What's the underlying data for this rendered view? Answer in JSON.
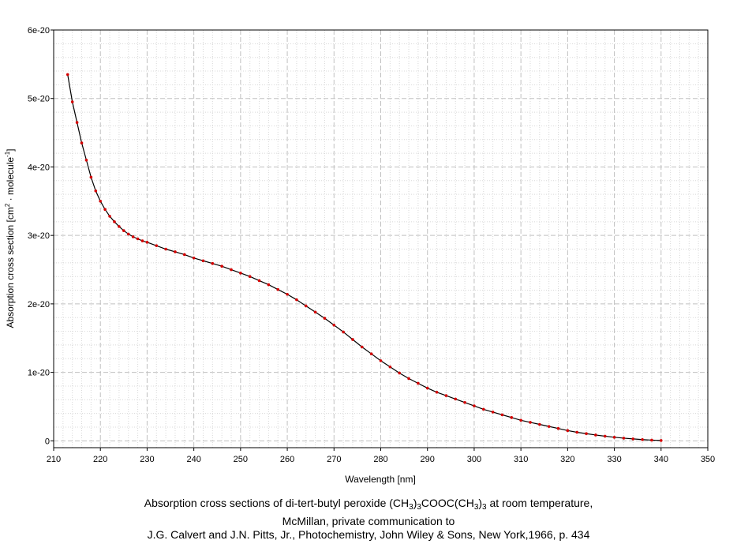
{
  "chart_data": {
    "type": "line",
    "xlabel": "Wavelength [nm]",
    "ylabel": "Absorption cross section [cm",
    "ylabel_sup1": "2",
    "ylabel_mid": " · molecule",
    "ylabel_sup2": "-1",
    "ylabel_end": "]",
    "xlim": [
      210,
      350
    ],
    "ylim": [
      -1e-21,
      6e-20
    ],
    "x_ticks": [
      210,
      220,
      230,
      240,
      250,
      260,
      270,
      280,
      290,
      300,
      310,
      320,
      330,
      340,
      350
    ],
    "x_tick_labels": [
      "210",
      "220",
      "230",
      "240",
      "250",
      "260",
      "270",
      "280",
      "290",
      "300",
      "310",
      "320",
      "330",
      "340",
      "350"
    ],
    "y_ticks": [
      0,
      1e-20,
      2e-20,
      3e-20,
      4e-20,
      5e-20,
      6e-20
    ],
    "y_tick_labels": [
      "0",
      "1e-20",
      "2e-20",
      "3e-20",
      "4e-20",
      "5e-20",
      "6e-20"
    ],
    "grid": true,
    "colors": {
      "line": "#000000",
      "marker": "#d40000",
      "grid": "#c0c0c0"
    },
    "series": [
      {
        "x": [
          213,
          214,
          215,
          216,
          217,
          218,
          219,
          220,
          221,
          222,
          223,
          224,
          225,
          226,
          227,
          228,
          229,
          230,
          232,
          234,
          236,
          238,
          240,
          242,
          244,
          246,
          248,
          250,
          252,
          254,
          256,
          258,
          260,
          262,
          264,
          266,
          268,
          270,
          272,
          274,
          276,
          278,
          280,
          282,
          284,
          286,
          288,
          290,
          292,
          294,
          296,
          298,
          300,
          302,
          304,
          306,
          308,
          310,
          312,
          314,
          316,
          318,
          320,
          322,
          324,
          326,
          328,
          330,
          332,
          334,
          336,
          338,
          340
        ],
        "y": [
          5.35e-20,
          4.95e-20,
          4.65e-20,
          4.35e-20,
          4.1e-20,
          3.85e-20,
          3.65e-20,
          3.5e-20,
          3.38e-20,
          3.28e-20,
          3.2e-20,
          3.13e-20,
          3.07e-20,
          3.02e-20,
          2.98e-20,
          2.95e-20,
          2.92e-20,
          2.9e-20,
          2.85e-20,
          2.8e-20,
          2.76e-20,
          2.72e-20,
          2.67e-20,
          2.63e-20,
          2.59e-20,
          2.55e-20,
          2.5e-20,
          2.45e-20,
          2.4e-20,
          2.34e-20,
          2.28e-20,
          2.21e-20,
          2.14e-20,
          2.06e-20,
          1.97e-20,
          1.88e-20,
          1.79e-20,
          1.69e-20,
          1.59e-20,
          1.48e-20,
          1.37e-20,
          1.27e-20,
          1.17e-20,
          1.08e-20,
          9.9e-21,
          9.1e-21,
          8.4e-21,
          7.7e-21,
          7.1e-21,
          6.6e-21,
          6.1e-21,
          5.6e-21,
          5.1e-21,
          4.6e-21,
          4.2e-21,
          3.8e-21,
          3.4e-21,
          3e-21,
          2.7e-21,
          2.4e-21,
          2.1e-21,
          1.8e-21,
          1.5e-21,
          1.25e-21,
          1.05e-21,
          8.5e-22,
          6.8e-22,
          5.2e-22,
          3.9e-22,
          2.8e-22,
          1.8e-22,
          1e-22,
          5e-23
        ]
      }
    ]
  },
  "caption": {
    "line1_a": "Absorption cross sections of di-tert-butyl peroxide (CH",
    "sub1": "3",
    "line1_b": ")",
    "sub2": "3",
    "line1_c": "COOC(CH",
    "sub3": "3",
    "line1_d": ")",
    "sub4": "3",
    "line1_e": " at room temperature,",
    "line2": "McMillan, private communication to",
    "line3": "J.G. Calvert and J.N. Pitts, Jr., Photochemistry, John Wiley & Sons, New York,1966, p. 434"
  }
}
